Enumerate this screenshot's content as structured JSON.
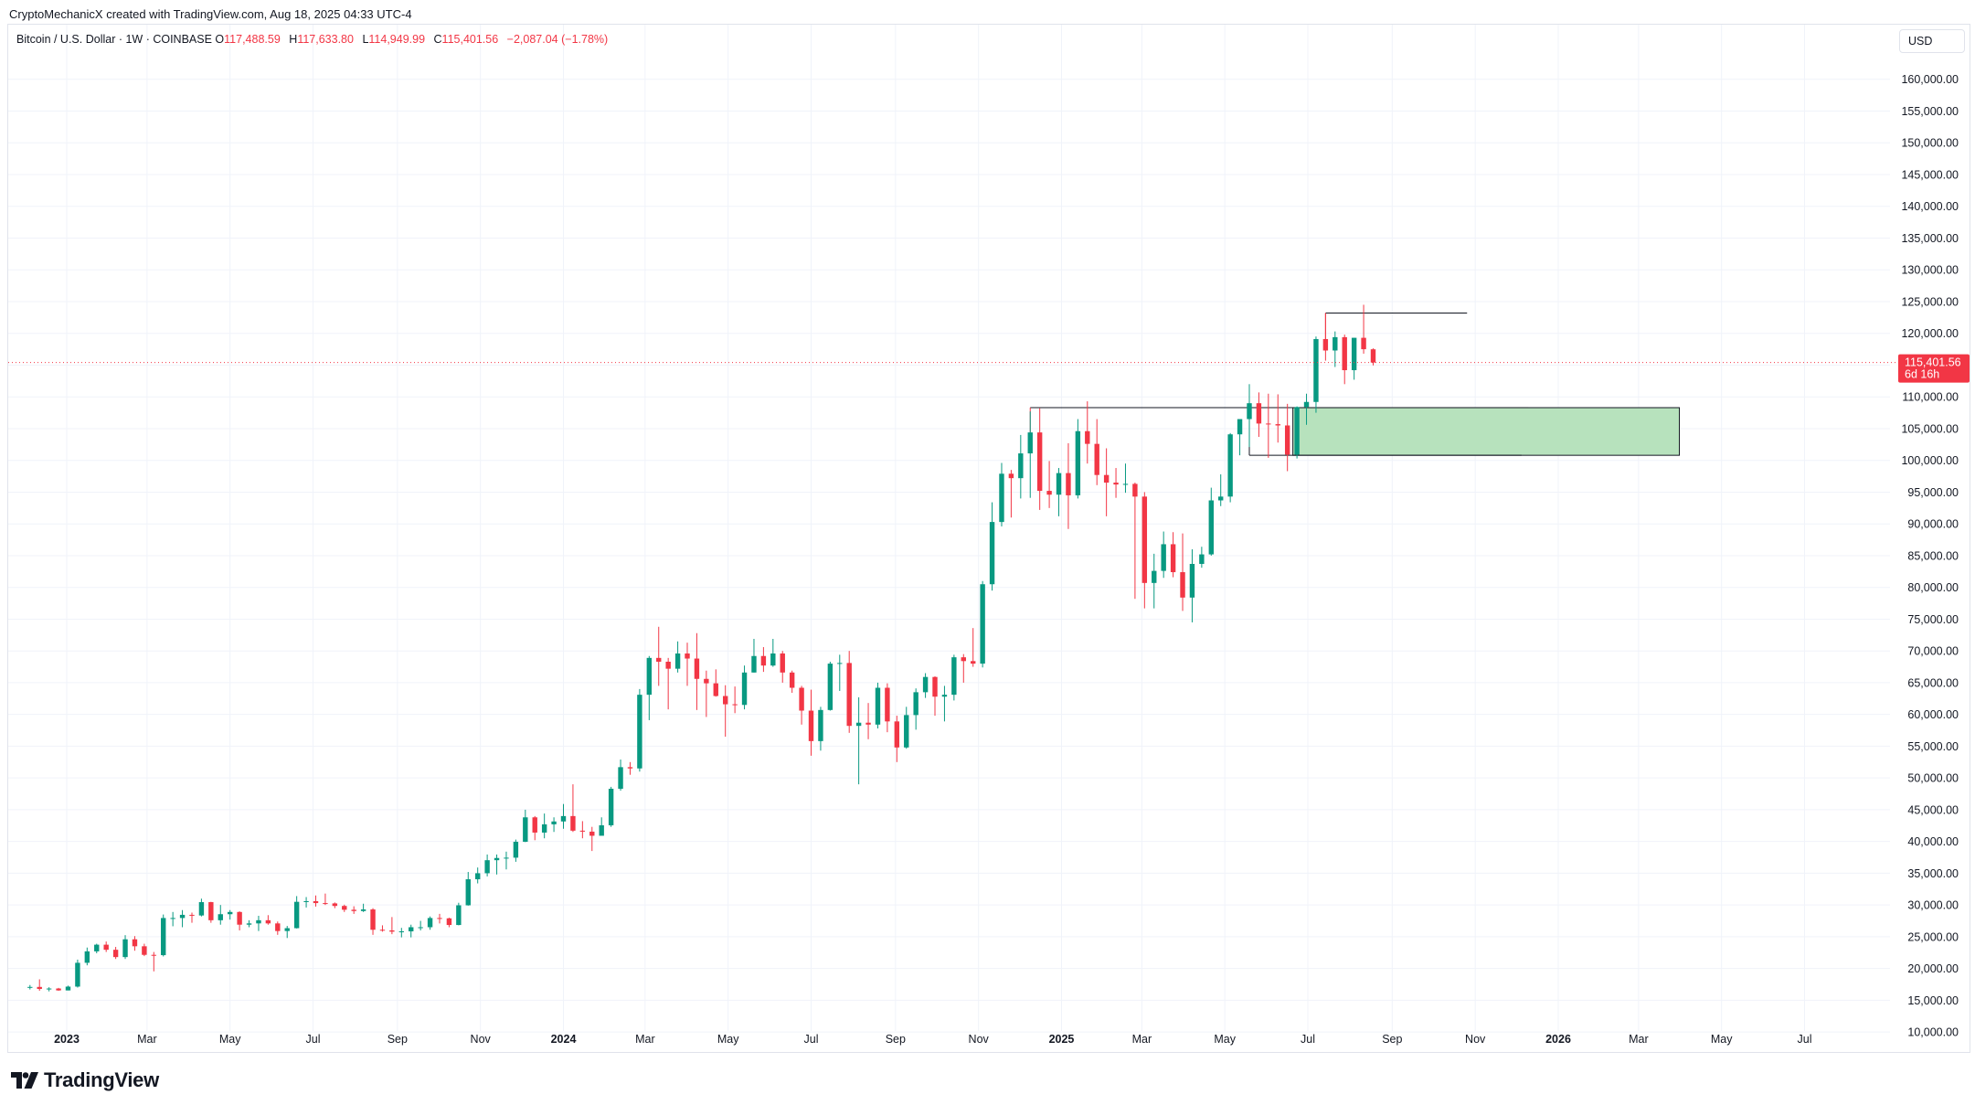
{
  "header": {
    "attribution": "CryptoMechanicX created with TradingView.com, Aug 18, 2025 04:33 UTC-4",
    "symbol": "Bitcoin / U.S. Dollar · 1W · COINBASE",
    "open_label": "O",
    "open": "117,488.59",
    "high_label": "H",
    "high": "117,633.80",
    "low_label": "L",
    "low": "114,949.99",
    "close_label": "C",
    "close": "115,401.56",
    "change": "−2,087.04 (−1.78%)"
  },
  "currency": "USD",
  "price_badge": {
    "price": "115,401.56",
    "countdown": "6d 16h"
  },
  "brand": "TradingView",
  "colors": {
    "up": "#089981",
    "down": "#f23645",
    "zone": "#b7e2bd",
    "grid": "#f0f3fa",
    "text": "#131722"
  },
  "chart_data": {
    "type": "candlestick",
    "interval": "1W",
    "yaxis": {
      "ticks": [
        "160,000.00",
        "155,000.00",
        "150,000.00",
        "145,000.00",
        "140,000.00",
        "135,000.00",
        "130,000.00",
        "125,000.00",
        "120,000.00",
        "115,000.00",
        "110,000.00",
        "105,000.00",
        "100,000.00",
        "95,000.00",
        "90,000.00",
        "85,000.00",
        "80,000.00",
        "75,000.00",
        "70,000.00",
        "65,000.00",
        "60,000.00",
        "55,000.00",
        "50,000.00",
        "45,000.00",
        "40,000.00",
        "35,000.00",
        "30,000.00",
        "25,000.00",
        "20,000.00",
        "15,000.00",
        "10,000.00"
      ],
      "ylim": [
        7000,
        165000
      ]
    },
    "xaxis": {
      "ticks": [
        {
          "label": "2023",
          "date": "2023-01-01",
          "bold": true
        },
        {
          "label": "Mar",
          "date": "2023-03-01"
        },
        {
          "label": "May",
          "date": "2023-05-01"
        },
        {
          "label": "Jul",
          "date": "2023-07-01"
        },
        {
          "label": "Sep",
          "date": "2023-09-01"
        },
        {
          "label": "Nov",
          "date": "2023-11-01"
        },
        {
          "label": "2024",
          "date": "2024-01-01",
          "bold": true
        },
        {
          "label": "Mar",
          "date": "2024-03-01"
        },
        {
          "label": "May",
          "date": "2024-05-01"
        },
        {
          "label": "Jul",
          "date": "2024-07-01"
        },
        {
          "label": "Sep",
          "date": "2024-09-01"
        },
        {
          "label": "Nov",
          "date": "2024-11-01"
        },
        {
          "label": "2025",
          "date": "2025-01-01",
          "bold": true
        },
        {
          "label": "Mar",
          "date": "2025-03-01"
        },
        {
          "label": "May",
          "date": "2025-05-01"
        },
        {
          "label": "Jul",
          "date": "2025-07-01"
        },
        {
          "label": "Sep",
          "date": "2025-09-01"
        },
        {
          "label": "Nov",
          "date": "2025-11-01"
        },
        {
          "label": "2026",
          "date": "2026-01-01",
          "bold": true
        },
        {
          "label": "Mar",
          "date": "2026-03-01"
        },
        {
          "label": "May",
          "date": "2026-05-01"
        },
        {
          "label": "Jul",
          "date": "2026-07-01"
        }
      ]
    },
    "last_price": 115401.56,
    "candles": [
      [
        "2022-12-05",
        16970,
        17400,
        16700,
        17100
      ],
      [
        "2022-12-12",
        17100,
        18300,
        16500,
        16780
      ],
      [
        "2022-12-19",
        16780,
        17050,
        16400,
        16850
      ],
      [
        "2022-12-26",
        16850,
        16950,
        16500,
        16550
      ],
      [
        "2023-01-02",
        16550,
        17300,
        16550,
        17150
      ],
      [
        "2023-01-09",
        17150,
        21400,
        17000,
        20900
      ],
      [
        "2023-01-16",
        20900,
        23300,
        20500,
        22700
      ],
      [
        "2023-01-23",
        22700,
        23900,
        22400,
        23750
      ],
      [
        "2023-01-30",
        23750,
        24250,
        22600,
        22950
      ],
      [
        "2023-02-06",
        22950,
        23400,
        21500,
        21800
      ],
      [
        "2023-02-13",
        21800,
        25250,
        21500,
        24600
      ],
      [
        "2023-02-20",
        24600,
        25100,
        22800,
        23500
      ],
      [
        "2023-02-27",
        23500,
        23900,
        21950,
        22150
      ],
      [
        "2023-03-06",
        22150,
        22600,
        19550,
        22100
      ],
      [
        "2023-03-13",
        22100,
        28500,
        21900,
        27950
      ],
      [
        "2023-03-20",
        27950,
        28900,
        26650,
        27950
      ],
      [
        "2023-03-27",
        27950,
        29200,
        26500,
        28450
      ],
      [
        "2023-04-03",
        28450,
        28800,
        27200,
        28350
      ],
      [
        "2023-04-10",
        28350,
        31000,
        28200,
        30450
      ],
      [
        "2023-04-17",
        30450,
        30500,
        27200,
        27600
      ],
      [
        "2023-04-24",
        27600,
        30000,
        26900,
        28550
      ],
      [
        "2023-05-01",
        28550,
        29200,
        27700,
        28900
      ],
      [
        "2023-05-08",
        28900,
        29000,
        26000,
        26900
      ],
      [
        "2023-05-15",
        26900,
        27600,
        26500,
        27100
      ],
      [
        "2023-05-22",
        27100,
        28300,
        25900,
        27600
      ],
      [
        "2023-05-29",
        27600,
        28400,
        26900,
        27100
      ],
      [
        "2023-06-05",
        27100,
        27400,
        25300,
        25900
      ],
      [
        "2023-06-12",
        25900,
        26700,
        24800,
        26350
      ],
      [
        "2023-06-19",
        26350,
        31400,
        26300,
        30500
      ],
      [
        "2023-06-26",
        30500,
        31250,
        29600,
        30600
      ],
      [
        "2023-07-03",
        30600,
        31500,
        29750,
        30300
      ],
      [
        "2023-07-10",
        30300,
        31800,
        30000,
        30250
      ],
      [
        "2023-07-17",
        30250,
        30400,
        29500,
        29850
      ],
      [
        "2023-07-24",
        29850,
        30050,
        28900,
        29250
      ],
      [
        "2023-07-31",
        29250,
        29800,
        28600,
        29050
      ],
      [
        "2023-08-07",
        29050,
        30200,
        28900,
        29300
      ],
      [
        "2023-08-14",
        29300,
        29500,
        25300,
        26100
      ],
      [
        "2023-08-21",
        26100,
        26800,
        25800,
        26000
      ],
      [
        "2023-08-28",
        26000,
        28100,
        25400,
        25800
      ],
      [
        "2023-09-04",
        25800,
        26400,
        24900,
        25850
      ],
      [
        "2023-09-11",
        25850,
        26900,
        24900,
        26500
      ],
      [
        "2023-09-18",
        26500,
        27500,
        26000,
        26500
      ],
      [
        "2023-09-25",
        26500,
        28200,
        26100,
        27950
      ],
      [
        "2023-10-02",
        27950,
        28600,
        27100,
        27900
      ],
      [
        "2023-10-09",
        27900,
        28000,
        26500,
        26850
      ],
      [
        "2023-10-16",
        26850,
        30350,
        26800,
        29950
      ],
      [
        "2023-10-23",
        29950,
        35200,
        29900,
        34050
      ],
      [
        "2023-10-30",
        34050,
        35900,
        33400,
        35000
      ],
      [
        "2023-11-06",
        35000,
        37950,
        34500,
        37050
      ],
      [
        "2023-11-13",
        37050,
        37950,
        34800,
        37400
      ],
      [
        "2023-11-20",
        37400,
        38400,
        35600,
        37450
      ],
      [
        "2023-11-27",
        37450,
        40300,
        36800,
        39950
      ],
      [
        "2023-12-04",
        39950,
        45000,
        39900,
        43800
      ],
      [
        "2023-12-11",
        43800,
        44000,
        40200,
        41400
      ],
      [
        "2023-12-18",
        41400,
        44400,
        40500,
        42700
      ],
      [
        "2023-12-25",
        42700,
        43800,
        41500,
        43150
      ],
      [
        "2024-01-01",
        43150,
        45900,
        42000,
        44000
      ],
      [
        "2024-01-08",
        44000,
        49000,
        41500,
        41700
      ],
      [
        "2024-01-15",
        41700,
        43200,
        40500,
        41550
      ],
      [
        "2024-01-22",
        41550,
        42300,
        38500,
        40900
      ],
      [
        "2024-01-29",
        40900,
        43800,
        41700,
        42550
      ],
      [
        "2024-02-05",
        42550,
        48600,
        42300,
        48300
      ],
      [
        "2024-02-12",
        48300,
        52900,
        48000,
        51700
      ],
      [
        "2024-02-19",
        51700,
        52500,
        50500,
        51500
      ],
      [
        "2024-02-26",
        51500,
        64000,
        51000,
        63100
      ],
      [
        "2024-03-04",
        63100,
        69200,
        59100,
        68900
      ],
      [
        "2024-03-11",
        68900,
        73800,
        64500,
        68300
      ],
      [
        "2024-03-18",
        68300,
        68900,
        60800,
        67200
      ],
      [
        "2024-03-25",
        67200,
        71500,
        66600,
        69600
      ],
      [
        "2024-04-01",
        69600,
        71300,
        64500,
        68800
      ],
      [
        "2024-04-08",
        68800,
        72800,
        60700,
        65600
      ],
      [
        "2024-04-15",
        65600,
        66900,
        59600,
        64900
      ],
      [
        "2024-04-22",
        64900,
        67100,
        62800,
        62900
      ],
      [
        "2024-04-29",
        62900,
        64600,
        56500,
        61600
      ],
      [
        "2024-05-06",
        61600,
        64400,
        60200,
        61500
      ],
      [
        "2024-05-13",
        61500,
        67700,
        60800,
        66600
      ],
      [
        "2024-05-20",
        66600,
        71900,
        66600,
        69200
      ],
      [
        "2024-05-27",
        69200,
        70600,
        66700,
        67700
      ],
      [
        "2024-06-03",
        67700,
        71900,
        67500,
        69600
      ],
      [
        "2024-06-10",
        69600,
        70000,
        65000,
        66600
      ],
      [
        "2024-06-17",
        66600,
        66900,
        63400,
        64200
      ],
      [
        "2024-06-24",
        64200,
        64500,
        58400,
        60600
      ],
      [
        "2024-07-01",
        60600,
        63900,
        53500,
        55800
      ],
      [
        "2024-07-08",
        55800,
        61200,
        54300,
        60700
      ],
      [
        "2024-07-15",
        60700,
        68300,
        60600,
        68000
      ],
      [
        "2024-07-22",
        68000,
        69400,
        63700,
        68100
      ],
      [
        "2024-07-29",
        68100,
        70000,
        57100,
        58200
      ],
      [
        "2024-08-05",
        58200,
        62700,
        49000,
        58700
      ],
      [
        "2024-08-12",
        58700,
        61800,
        56100,
        58400
      ],
      [
        "2024-08-19",
        58400,
        65000,
        57800,
        64200
      ],
      [
        "2024-08-26",
        64200,
        64900,
        57200,
        58900
      ],
      [
        "2024-09-02",
        58900,
        59800,
        52500,
        54800
      ],
      [
        "2024-09-09",
        54800,
        61200,
        54600,
        59900
      ],
      [
        "2024-09-16",
        59900,
        64100,
        57600,
        63500
      ],
      [
        "2024-09-23",
        63500,
        66500,
        62600,
        65900
      ],
      [
        "2024-09-30",
        65900,
        66000,
        59800,
        62800
      ],
      [
        "2024-10-07",
        62800,
        64500,
        58900,
        63100
      ],
      [
        "2024-10-14",
        63100,
        69400,
        62200,
        69000
      ],
      [
        "2024-10-21",
        69000,
        69500,
        65000,
        68400
      ],
      [
        "2024-10-28",
        68400,
        73600,
        67500,
        68000
      ],
      [
        "2024-11-04",
        68000,
        81000,
        67400,
        80500
      ],
      [
        "2024-11-11",
        80500,
        93400,
        79500,
        90300
      ],
      [
        "2024-11-18",
        90300,
        99600,
        89600,
        97900
      ],
      [
        "2024-11-25",
        97900,
        98500,
        91000,
        97200
      ],
      [
        "2024-12-02",
        97200,
        104000,
        94000,
        101100
      ],
      [
        "2024-12-09",
        101100,
        107700,
        94100,
        104400
      ],
      [
        "2024-12-16",
        104400,
        108200,
        92200,
        95200
      ],
      [
        "2024-12-23",
        95200,
        99900,
        92500,
        94600
      ],
      [
        "2024-12-30",
        94600,
        98800,
        91200,
        98000
      ],
      [
        "2025-01-06",
        98000,
        102700,
        89200,
        94500
      ],
      [
        "2025-01-13",
        94500,
        106500,
        94000,
        104600
      ],
      [
        "2025-01-20",
        104600,
        109300,
        99500,
        102600
      ],
      [
        "2025-01-27",
        102600,
        106500,
        96100,
        97700
      ],
      [
        "2025-02-03",
        97700,
        101900,
        91200,
        96500
      ],
      [
        "2025-02-10",
        96500,
        98800,
        94100,
        96200
      ],
      [
        "2025-02-17",
        96200,
        99500,
        94900,
        96300
      ],
      [
        "2025-02-24",
        96300,
        96500,
        78200,
        94300
      ],
      [
        "2025-03-03",
        94300,
        95000,
        76700,
        80700
      ],
      [
        "2025-03-10",
        80700,
        85300,
        76700,
        82600
      ],
      [
        "2025-03-17",
        82600,
        88800,
        81500,
        86800
      ],
      [
        "2025-03-24",
        86800,
        88700,
        81600,
        82400
      ],
      [
        "2025-03-31",
        82400,
        88500,
        76300,
        78400
      ],
      [
        "2025-04-07",
        78400,
        86000,
        74500,
        83700
      ],
      [
        "2025-04-14",
        83700,
        86400,
        83100,
        85200
      ],
      [
        "2025-04-21",
        85200,
        95700,
        85000,
        93700
      ],
      [
        "2025-04-28",
        93700,
        97800,
        92800,
        94300
      ],
      [
        "2025-05-05",
        94300,
        104300,
        93400,
        104100
      ],
      [
        "2025-05-12",
        104100,
        105800,
        100800,
        106500
      ],
      [
        "2025-05-19",
        106500,
        112000,
        102100,
        109000
      ],
      [
        "2025-05-26",
        109000,
        110700,
        103700,
        105800
      ],
      [
        "2025-06-02",
        105800,
        110500,
        100400,
        105700
      ],
      [
        "2025-06-09",
        105700,
        110400,
        102800,
        105500
      ],
      [
        "2025-06-16",
        105500,
        108900,
        98300,
        100900
      ],
      [
        "2025-06-23",
        100900,
        108500,
        100300,
        108400
      ],
      [
        "2025-06-30",
        108400,
        110500,
        105600,
        109200
      ],
      [
        "2025-07-07",
        109200,
        119500,
        107500,
        119100
      ],
      [
        "2025-07-14",
        119100,
        123200,
        115700,
        117300
      ],
      [
        "2025-07-21",
        117300,
        120300,
        114700,
        119400
      ],
      [
        "2025-07-28",
        119400,
        119800,
        112000,
        114200
      ],
      [
        "2025-08-04",
        114200,
        119300,
        112700,
        119300
      ],
      [
        "2025-08-11",
        119300,
        124500,
        116800,
        117500
      ],
      [
        "2025-08-18",
        117489,
        117634,
        114950,
        115402
      ]
    ]
  }
}
